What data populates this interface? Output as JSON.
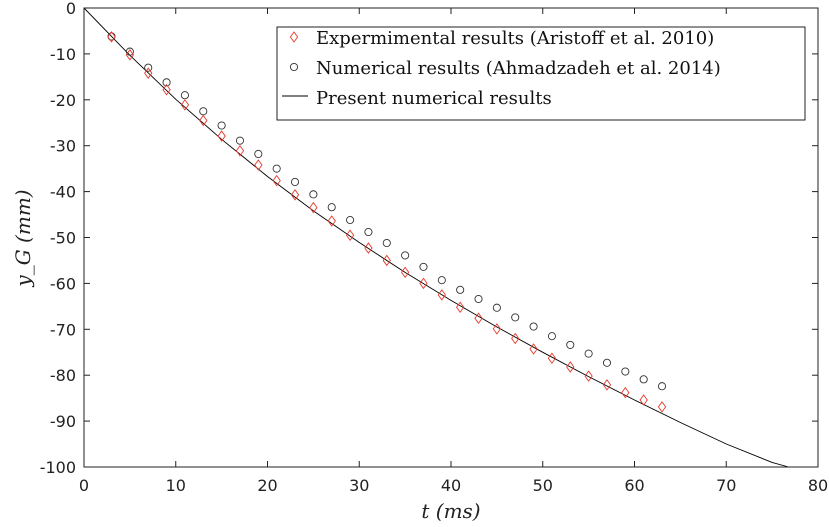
{
  "chart_data": {
    "type": "scatter",
    "xlabel": "t (ms)",
    "ylabel": "y_G (mm)",
    "xlim": [
      0,
      80
    ],
    "ylim": [
      -100,
      0
    ],
    "xticks": [
      0,
      10,
      20,
      30,
      40,
      50,
      60,
      70,
      80
    ],
    "yticks": [
      0,
      -10,
      -20,
      -30,
      -40,
      -50,
      -60,
      -70,
      -80,
      -90,
      -100
    ],
    "grid": false,
    "legend_position": "top-right",
    "series": [
      {
        "name": "Expermimental results (Aristoff et al. 2010)",
        "marker": "diamond",
        "color": "#e8392b",
        "x": [
          3,
          5,
          7,
          9,
          11,
          13,
          15,
          17,
          19,
          21,
          23,
          25,
          27,
          29,
          31,
          33,
          35,
          37,
          39,
          41,
          43,
          45,
          47,
          49,
          51,
          53,
          55,
          57,
          59,
          61,
          63
        ],
        "y": [
          -6.3,
          -10.2,
          -14.2,
          -17.8,
          -21.1,
          -24.5,
          -27.9,
          -31.1,
          -34.2,
          -37.6,
          -40.7,
          -43.5,
          -46.4,
          -49.5,
          -52.3,
          -55.0,
          -57.6,
          -60.0,
          -62.5,
          -65.2,
          -67.6,
          -69.9,
          -72.0,
          -74.3,
          -76.3,
          -78.2,
          -80.2,
          -82.1,
          -83.8,
          -85.4,
          -86.9
        ]
      },
      {
        "name": "Numerical results (Ahmadzadeh et al. 2014)",
        "marker": "circle",
        "color": "#333333",
        "x": [
          3,
          5,
          7,
          9,
          11,
          13,
          15,
          17,
          19,
          21,
          23,
          25,
          27,
          29,
          31,
          33,
          35,
          37,
          39,
          41,
          43,
          45,
          47,
          49,
          51,
          53,
          55,
          57,
          59,
          61,
          63
        ],
        "y": [
          -6.2,
          -9.5,
          -13.0,
          -16.2,
          -19.0,
          -22.5,
          -25.6,
          -28.9,
          -31.8,
          -35.0,
          -37.9,
          -40.6,
          -43.4,
          -46.2,
          -48.8,
          -51.2,
          -53.9,
          -56.4,
          -59.3,
          -61.4,
          -63.4,
          -65.3,
          -67.4,
          -69.4,
          -71.5,
          -73.4,
          -75.3,
          -77.3,
          -79.2,
          -80.9,
          -82.4
        ]
      },
      {
        "name": "Present numerical results",
        "marker": "line",
        "color": "#000000",
        "x": [
          0,
          5,
          10,
          15,
          20,
          25,
          30,
          35,
          40,
          45,
          50,
          55,
          60,
          65,
          70,
          75,
          76.8
        ],
        "y": [
          0,
          -10.3,
          -19.9,
          -28.6,
          -36.7,
          -44.2,
          -51.1,
          -57.6,
          -63.7,
          -69.5,
          -75.0,
          -80.3,
          -85.4,
          -90.3,
          -95.0,
          -99.0,
          -100
        ]
      }
    ]
  }
}
